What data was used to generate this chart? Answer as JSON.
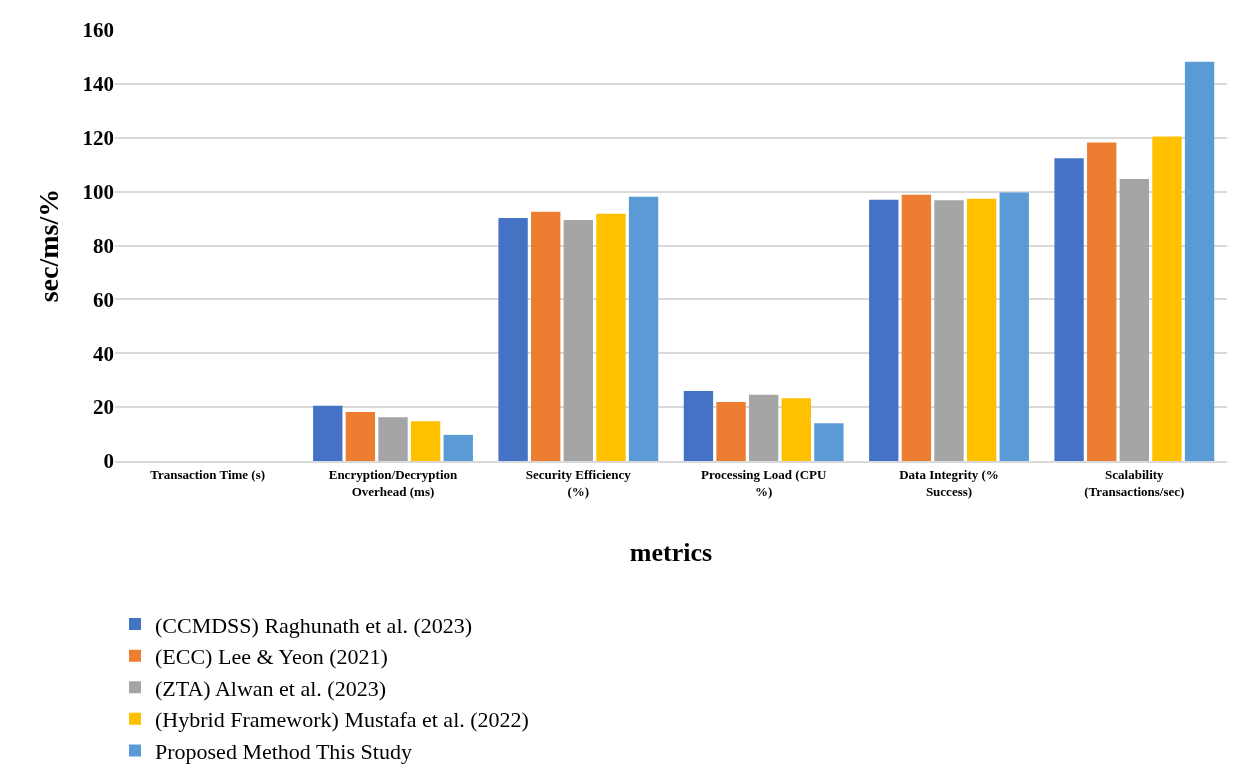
{
  "chart_data": {
    "type": "bar",
    "xlabel": "metrics",
    "ylabel": "sec/ms/%",
    "categories": [
      "Transaction Time (s)",
      "Encryption/Decryption Overhead (ms)",
      "Security Efficiency (%)",
      "Processing Load (CPU %)",
      "Data Integrity (% Success)",
      "Scalability (Transactions/sec)"
    ],
    "series": [
      {
        "name": "(CCMDSS) Raghunath et al. (2023)",
        "color": "#4472c4",
        "values": [
          0,
          20.5,
          90.2,
          26.0,
          97.0,
          112.4
        ]
      },
      {
        "name": "(ECC) Lee & Yeon (2021)",
        "color": "#ed7d31",
        "values": [
          0,
          18.2,
          92.5,
          21.9,
          98.8,
          118.2
        ]
      },
      {
        "name": "(ZTA) Alwan et al. (2023)",
        "color": "#a5a5a5",
        "values": [
          0,
          16.2,
          89.5,
          24.6,
          96.8,
          104.7
        ]
      },
      {
        "name": "(Hybrid Framework) Mustafa et al. (2022)",
        "color": "#ffc000",
        "values": [
          0,
          14.8,
          91.8,
          23.3,
          97.4,
          120.5
        ]
      },
      {
        "name": "Proposed Method This Study",
        "color": "#5b9bd5",
        "values": [
          0,
          9.7,
          98.1,
          14.0,
          99.7,
          148.2
        ]
      }
    ],
    "ylim": [
      0,
      160
    ],
    "yticks": [
      0,
      20,
      40,
      60,
      80,
      100,
      120,
      140,
      160
    ],
    "grid": "y",
    "legend": "bottom"
  }
}
